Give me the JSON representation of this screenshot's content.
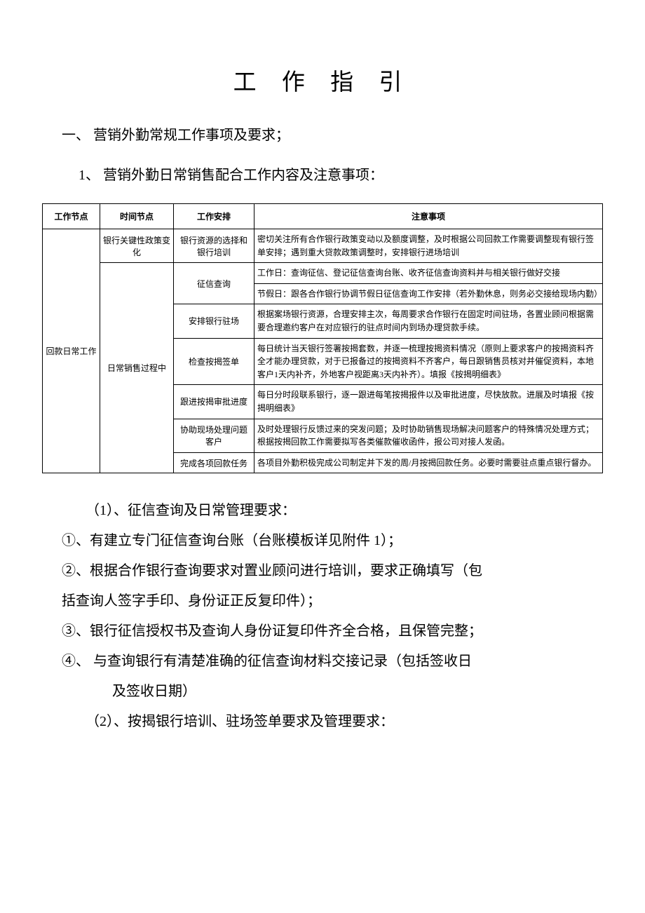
{
  "title": "工 作 指 引",
  "section1": {
    "heading": "一、 营销外勤常规工作事项及要求；",
    "sub1": {
      "heading": "1、  营销外勤日常销售配合工作内容及注意事项："
    }
  },
  "table": {
    "headers": {
      "col1": "工作节点",
      "col2": "时间节点",
      "col3": "工作安排",
      "col4": "注意事项"
    },
    "rows": {
      "workNode": "回款日常工作",
      "r1": {
        "time": "银行关键性政策变化",
        "arrange": "银行资源的选择和银行培训",
        "notes": "密切关注所有合作银行政策变动以及额度调整，及时根据公司回款工作需要调整现有银行签单安排；遇到重大贷款政策调整时，安排银行进场培训"
      },
      "timeNode2": "日常销售过程中",
      "r2a": {
        "arrange": "征信查询",
        "notes": "工作日：查询征信、登记征信查询台账、收齐征信查询资料并与相关银行做好交接"
      },
      "r2b": {
        "notes": "节假日：跟各合作银行协调节假日征信查询工作安排（若外勤休息，则务必交接给现场内勤）"
      },
      "r3": {
        "arrange": "安排银行驻场",
        "notes": "根据案场银行资源，合理安排主次，每周要求合作银行在固定时间驻场，各置业顾问根据需要合理邀约客户在对应银行的驻点时间内到场办理贷款手续。"
      },
      "r4": {
        "arrange": "检查按揭签单",
        "notes": "每日统计当天银行签署按揭套数，并逐一梳理按揭资料情况（原则上要求客户的按揭资料齐全才能办理贷款，对于已报备过的按揭资料不齐客户，每日跟销售员核对并催促资料，本地客户1天内补齐，外地客户视距离3天内补齐）。填报《按揭明细表》"
      },
      "r5": {
        "arrange": "跟进按揭审批进度",
        "notes": "每日分时段联系银行，逐一跟进每笔按揭报件以及审批进度，尽快放款。进展及时填报《按揭明细表》"
      },
      "r6": {
        "arrange": "协助现场处理问题客户",
        "notes": "及时处理银行反馈过来的突发问题；及时协助销售现场解决问题客户的特殊情况处理方式；根据按揭回款工作需要拟写各类催款催收函件，报公司对接人发函。"
      },
      "r7": {
        "arrange": "完成各项回款任务",
        "notes": "各项目外勤积极完成公司制定并下发的周/月按揭回款任务。必要时需要驻点重点银行督办。"
      }
    }
  },
  "body": {
    "p1": "（1）、征信查询及日常管理要求：",
    "p2": "①、有建立专门征信查询台账（台账模板详见附件 1）；",
    "p3a": "②、根据合作银行查询要求对置业顾问进行培训，要求正确填写（包",
    "p3b": "括查询人签字手印、身份证正反复印件）；",
    "p4": "③、银行征信授权书及查询人身份证复印件齐全合格，且保管完整；",
    "p5a": "④、 与查询银行有清楚准确的征信查询材料交接记录（包括签收日",
    "p5b": "及签收日期）",
    "p6": "（2）、按揭银行培训、驻场签单要求及管理要求："
  }
}
